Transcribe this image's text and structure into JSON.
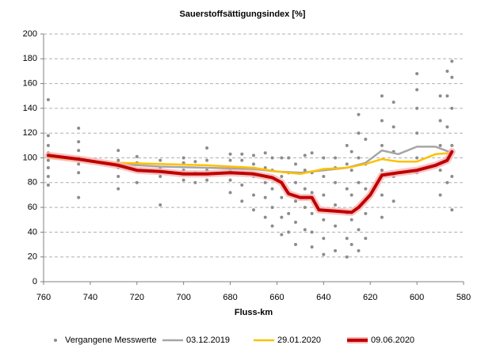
{
  "chart_data": {
    "type": "scatter-line",
    "title": "Sauerstoffsättigungsindex [%]",
    "x_label": "Fluss-km",
    "xlim": [
      760,
      580
    ],
    "xticks": [
      760,
      740,
      720,
      700,
      680,
      660,
      640,
      620,
      600,
      580
    ],
    "ylim": [
      0,
      200
    ],
    "yticks": [
      0,
      20,
      40,
      60,
      80,
      100,
      120,
      140,
      160,
      180,
      200
    ],
    "grid": true,
    "legend": "bottom",
    "series": [
      {
        "name": "Vergangene Messwerte",
        "color": "#8c8c8c",
        "kind": "scatter",
        "x": [
          758,
          758,
          758,
          758,
          758,
          758,
          758,
          758,
          745,
          745,
          745,
          745,
          745,
          745,
          745,
          728,
          728,
          728,
          728,
          728,
          720,
          720,
          720,
          720,
          710,
          710,
          710,
          710,
          700,
          700,
          700,
          700,
          695,
          695,
          695,
          690,
          690,
          690,
          690,
          680,
          680,
          680,
          680,
          680,
          675,
          675,
          675,
          675,
          675,
          670,
          670,
          670,
          670,
          670,
          665,
          665,
          665,
          665,
          665,
          662,
          662,
          662,
          662,
          662,
          658,
          658,
          658,
          658,
          658,
          655,
          655,
          655,
          655,
          655,
          652,
          652,
          652,
          652,
          652,
          648,
          648,
          648,
          648,
          648,
          645,
          645,
          645,
          645,
          645,
          645,
          640,
          640,
          640,
          640,
          640,
          640,
          635,
          635,
          635,
          635,
          635,
          635,
          630,
          630,
          630,
          630,
          630,
          630,
          628,
          628,
          628,
          628,
          628,
          625,
          625,
          625,
          625,
          625,
          625,
          625,
          622,
          622,
          622,
          622,
          622,
          615,
          615,
          615,
          615,
          615,
          615,
          610,
          610,
          610,
          610,
          610,
          600,
          600,
          600,
          600,
          600,
          600,
          590,
          590,
          590,
          590,
          590,
          587,
          587,
          587,
          587,
          587,
          585,
          585,
          585,
          585,
          585,
          585
        ],
        "values": [
          78,
          85,
          92,
          98,
          104,
          110,
          118,
          147,
          68,
          88,
          95,
          100,
          106,
          113,
          124,
          75,
          85,
          92,
          98,
          106,
          80,
          90,
          96,
          101,
          62,
          85,
          92,
          98,
          82,
          90,
          96,
          100,
          80,
          88,
          97,
          82,
          90,
          98,
          108,
          72,
          82,
          90,
          98,
          103,
          65,
          78,
          88,
          98,
          103,
          58,
          70,
          85,
          95,
          102,
          52,
          68,
          80,
          92,
          104,
          45,
          60,
          75,
          90,
          100,
          38,
          52,
          68,
          85,
          100,
          40,
          55,
          72,
          88,
          100,
          30,
          48,
          65,
          80,
          95,
          42,
          60,
          75,
          90,
          102,
          28,
          40,
          55,
          72,
          88,
          104,
          22,
          35,
          50,
          70,
          85,
          100,
          25,
          45,
          62,
          80,
          92,
          100,
          20,
          35,
          55,
          75,
          95,
          110,
          30,
          50,
          70,
          90,
          105,
          25,
          42,
          60,
          80,
          100,
          120,
          135,
          35,
          55,
          75,
          95,
          115,
          52,
          70,
          90,
          110,
          130,
          150,
          65,
          85,
          105,
          125,
          145,
          88,
          100,
          120,
          140,
          155,
          168,
          70,
          90,
          110,
          130,
          150,
          80,
          100,
          125,
          150,
          170,
          58,
          85,
          110,
          140,
          165,
          178
        ]
      },
      {
        "name": "03.12.2019",
        "color": "#a6a6a6",
        "kind": "line",
        "x": [
          758,
          745,
          728,
          710,
          690,
          670,
          660,
          650,
          640,
          630,
          622,
          615,
          608,
          600,
          592,
          585
        ],
        "values": [
          101,
          99,
          95,
          93,
          92,
          91,
          89,
          88,
          90,
          92,
          96,
          106,
          103,
          109,
          109,
          104
        ]
      },
      {
        "name": "29.01.2020",
        "color": "#ffc000",
        "kind": "line",
        "x": [
          758,
          745,
          728,
          710,
          690,
          670,
          660,
          650,
          640,
          630,
          622,
          615,
          608,
          600,
          592,
          585
        ],
        "values": [
          100,
          98,
          96,
          95,
          94,
          92,
          89,
          87,
          91,
          92,
          95,
          99,
          97,
          97,
          103,
          104
        ]
      },
      {
        "name": "09.06.2020",
        "color": "#c00000",
        "kind": "line",
        "glow": "#f4b6b6",
        "x": [
          758,
          745,
          728,
          720,
          710,
          700,
          690,
          680,
          670,
          662,
          658,
          655,
          650,
          645,
          642,
          635,
          628,
          625,
          620,
          615,
          608,
          600,
          592,
          587,
          585
        ],
        "values": [
          102,
          99,
          94,
          90,
          89,
          87,
          87,
          88,
          87,
          84,
          80,
          71,
          68,
          68,
          58,
          57,
          56,
          60,
          70,
          86,
          88,
          90,
          94,
          98,
          105
        ]
      }
    ]
  }
}
